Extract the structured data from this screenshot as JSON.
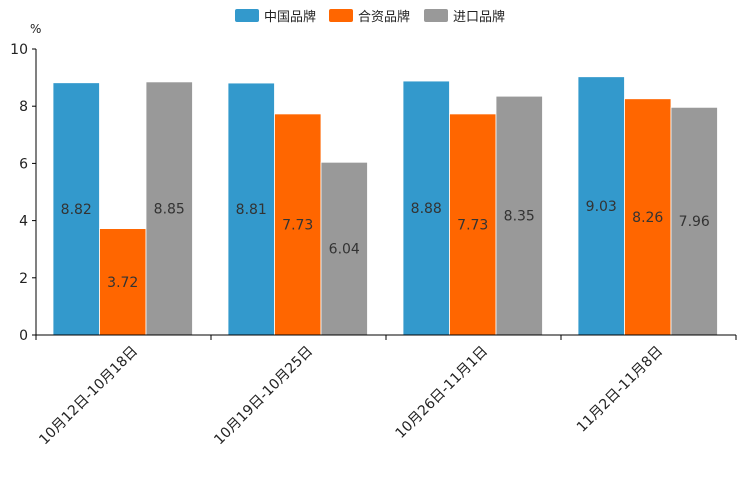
{
  "chart_data": {
    "type": "bar",
    "title": "",
    "xlabel": "",
    "ylabel": "%",
    "ylim": [
      0,
      10
    ],
    "yticks": [
      "0",
      "2",
      "4",
      "6",
      "8",
      "10"
    ],
    "categories": [
      "10月12日-10月18日",
      "10月19日-10月25日",
      "10月26日-11月1日",
      "11月2日-11月8日"
    ],
    "series": [
      {
        "name": "中国品牌",
        "color": "#3399cc",
        "values": [
          8.82,
          8.81,
          8.88,
          9.03
        ],
        "labels": [
          "8.82",
          "8.81",
          "8.88",
          "9.03"
        ]
      },
      {
        "name": "合资品牌",
        "color": "#ff6600",
        "values": [
          3.72,
          7.73,
          7.73,
          8.26
        ],
        "labels": [
          "3.72",
          "7.73",
          "7.73",
          "8.26"
        ]
      },
      {
        "name": "进口品牌",
        "color": "#999999",
        "values": [
          8.85,
          6.04,
          8.35,
          7.96
        ],
        "labels": [
          "8.85",
          "6.04",
          "8.35",
          "7.96"
        ]
      }
    ],
    "legend_position": "top-center",
    "grid": false
  }
}
